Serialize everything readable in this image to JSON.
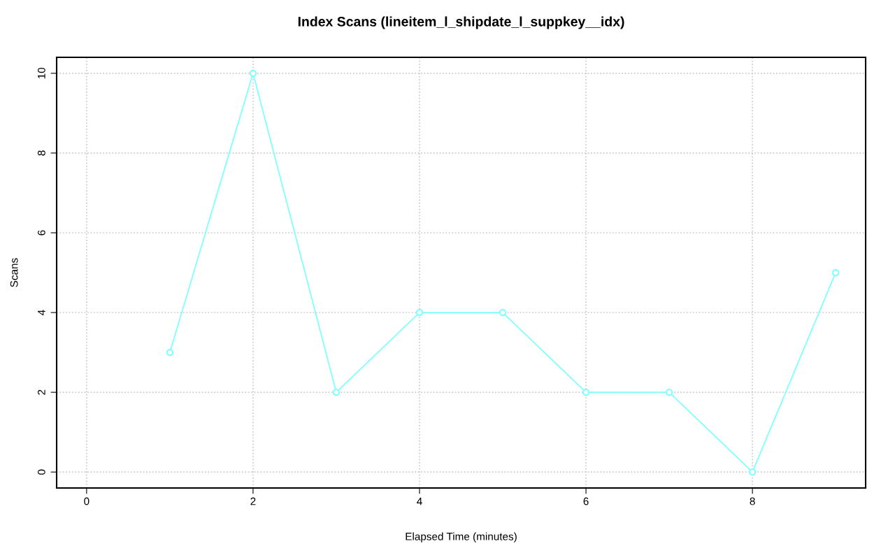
{
  "chart_data": {
    "type": "line",
    "title": "Index Scans (lineitem_l_shipdate_l_suppkey__idx)",
    "xlabel": "Elapsed Time (minutes)",
    "ylabel": "Scans",
    "x": [
      1,
      2,
      3,
      4,
      5,
      6,
      7,
      8,
      9
    ],
    "series": [
      {
        "color": "#80ffff",
        "values": [
          3,
          10,
          2,
          4,
          4,
          2,
          2,
          0,
          5
        ]
      }
    ],
    "xlim": [
      -0.36,
      9.36
    ],
    "ylim": [
      -0.4,
      10.4
    ],
    "xticks": [
      0,
      2,
      4,
      6,
      8
    ],
    "yticks": [
      0,
      2,
      4,
      6,
      8,
      10
    ],
    "grid": true,
    "marker": "circle",
    "line_style": "solid"
  }
}
